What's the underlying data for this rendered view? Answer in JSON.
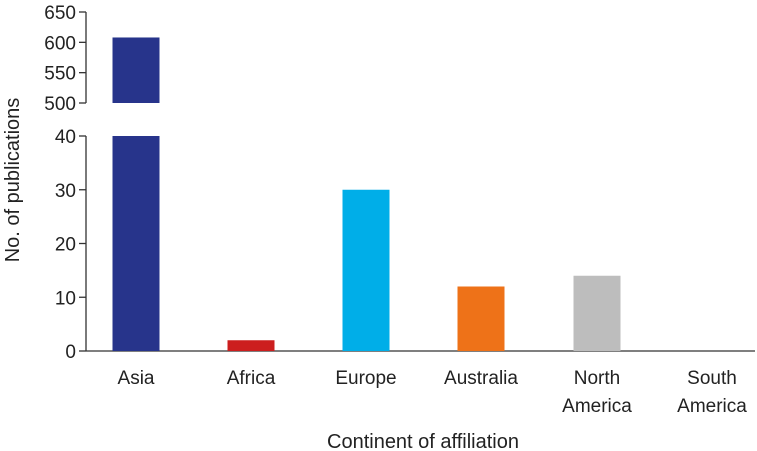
{
  "chart_data": {
    "type": "bar",
    "title": "",
    "xlabel": "Continent of affiliation",
    "ylabel": "No. of publications",
    "categories": [
      {
        "lines": [
          "Asia"
        ]
      },
      {
        "lines": [
          "Africa"
        ]
      },
      {
        "lines": [
          "Europe"
        ]
      },
      {
        "lines": [
          "Australia"
        ]
      },
      {
        "lines": [
          "North",
          "America"
        ]
      },
      {
        "lines": [
          "South",
          "America"
        ]
      }
    ],
    "values": [
      608,
      2,
      30,
      12,
      14,
      0
    ],
    "colors": [
      "#27348b",
      "#cc1e1e",
      "#00aee8",
      "#ee7218",
      "#bdbdbd",
      "#ffffff"
    ],
    "y_axis_break": true,
    "lower_segment": {
      "ylim": [
        0,
        40
      ],
      "ticks": [
        0,
        10,
        20,
        30,
        40
      ]
    },
    "upper_segment": {
      "ylim": [
        500,
        650
      ],
      "ticks": [
        500,
        550,
        600,
        650
      ]
    },
    "grid": false,
    "legend": "none"
  }
}
